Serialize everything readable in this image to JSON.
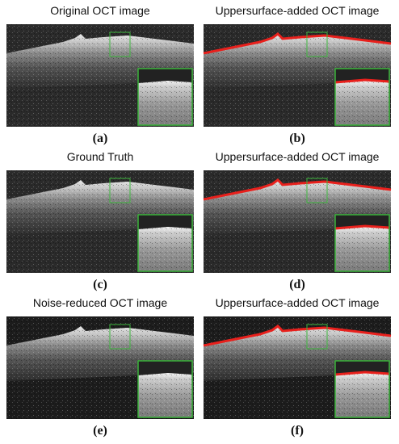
{
  "panels": [
    {
      "title": "Original OCT image",
      "label": "(a)"
    },
    {
      "title": "Uppersurface-added OCT image",
      "label": "(b)"
    },
    {
      "title": "Ground Truth",
      "label": "(c)"
    },
    {
      "title": "Uppersurface-added OCT image",
      "label": "(d)"
    },
    {
      "title": "Noise-reduced OCT image",
      "label": "(e)"
    },
    {
      "title": "Uppersurface-added OCT image",
      "label": "(f)"
    }
  ]
}
